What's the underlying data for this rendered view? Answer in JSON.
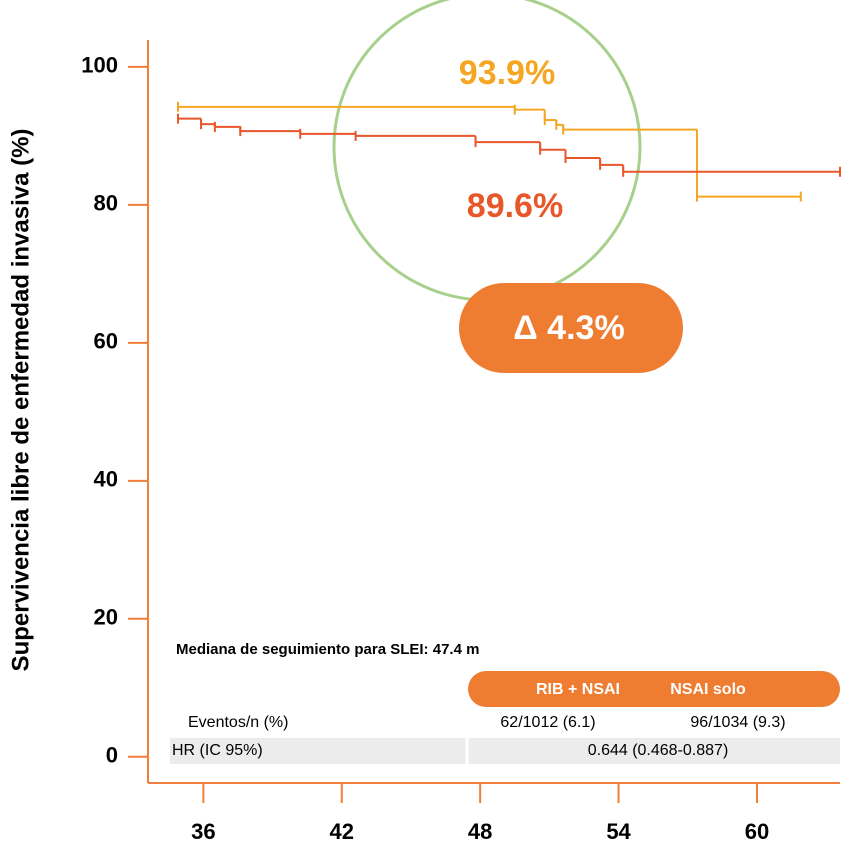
{
  "chart_data": {
    "type": "step",
    "y_label": "Supervivencia libre de enfermedad invasiva (%)",
    "xlim": [
      33.6,
      63.6
    ],
    "ylim": [
      -3.8,
      103.9
    ],
    "xticks": [
      36,
      42,
      48,
      54,
      60
    ],
    "yticks": [
      0,
      20,
      40,
      60,
      80,
      100
    ],
    "axis_color": "#ef7f3a",
    "series": [
      {
        "name": "RIB + NSAI",
        "color": "#f5a623",
        "x": [
          34.9,
          49.5,
          50.8,
          51.3,
          51.6,
          57.4,
          61.9
        ],
        "values": [
          94.2,
          93.8,
          92.3,
          91.6,
          90.9,
          81.2,
          81.2
        ]
      },
      {
        "name": "NSAI solo",
        "color": "#e8572a",
        "x": [
          34.9,
          35.9,
          36.5,
          37.6,
          40.2,
          42.6,
          47.8,
          50.6,
          51.7,
          53.2,
          54.2,
          63.6
        ],
        "values": [
          92.5,
          91.7,
          91.3,
          90.7,
          90.3,
          90.0,
          89.1,
          88.0,
          86.8,
          85.8,
          84.8,
          84.8
        ]
      }
    ],
    "annotations": {
      "top": "93.9%",
      "bottom": "89.6%",
      "delta": "Δ 4.3%"
    },
    "table": {
      "caption": "Mediana de seguimiento para SLEI: 47.4 m",
      "rows": [
        [
          "Eventos/n (%)",
          "62/1012 (6.1)",
          "96/1034 (9.3)"
        ],
        [
          "HR (IC 95%)",
          "0.644 (0.468-0.887)"
        ]
      ]
    }
  }
}
